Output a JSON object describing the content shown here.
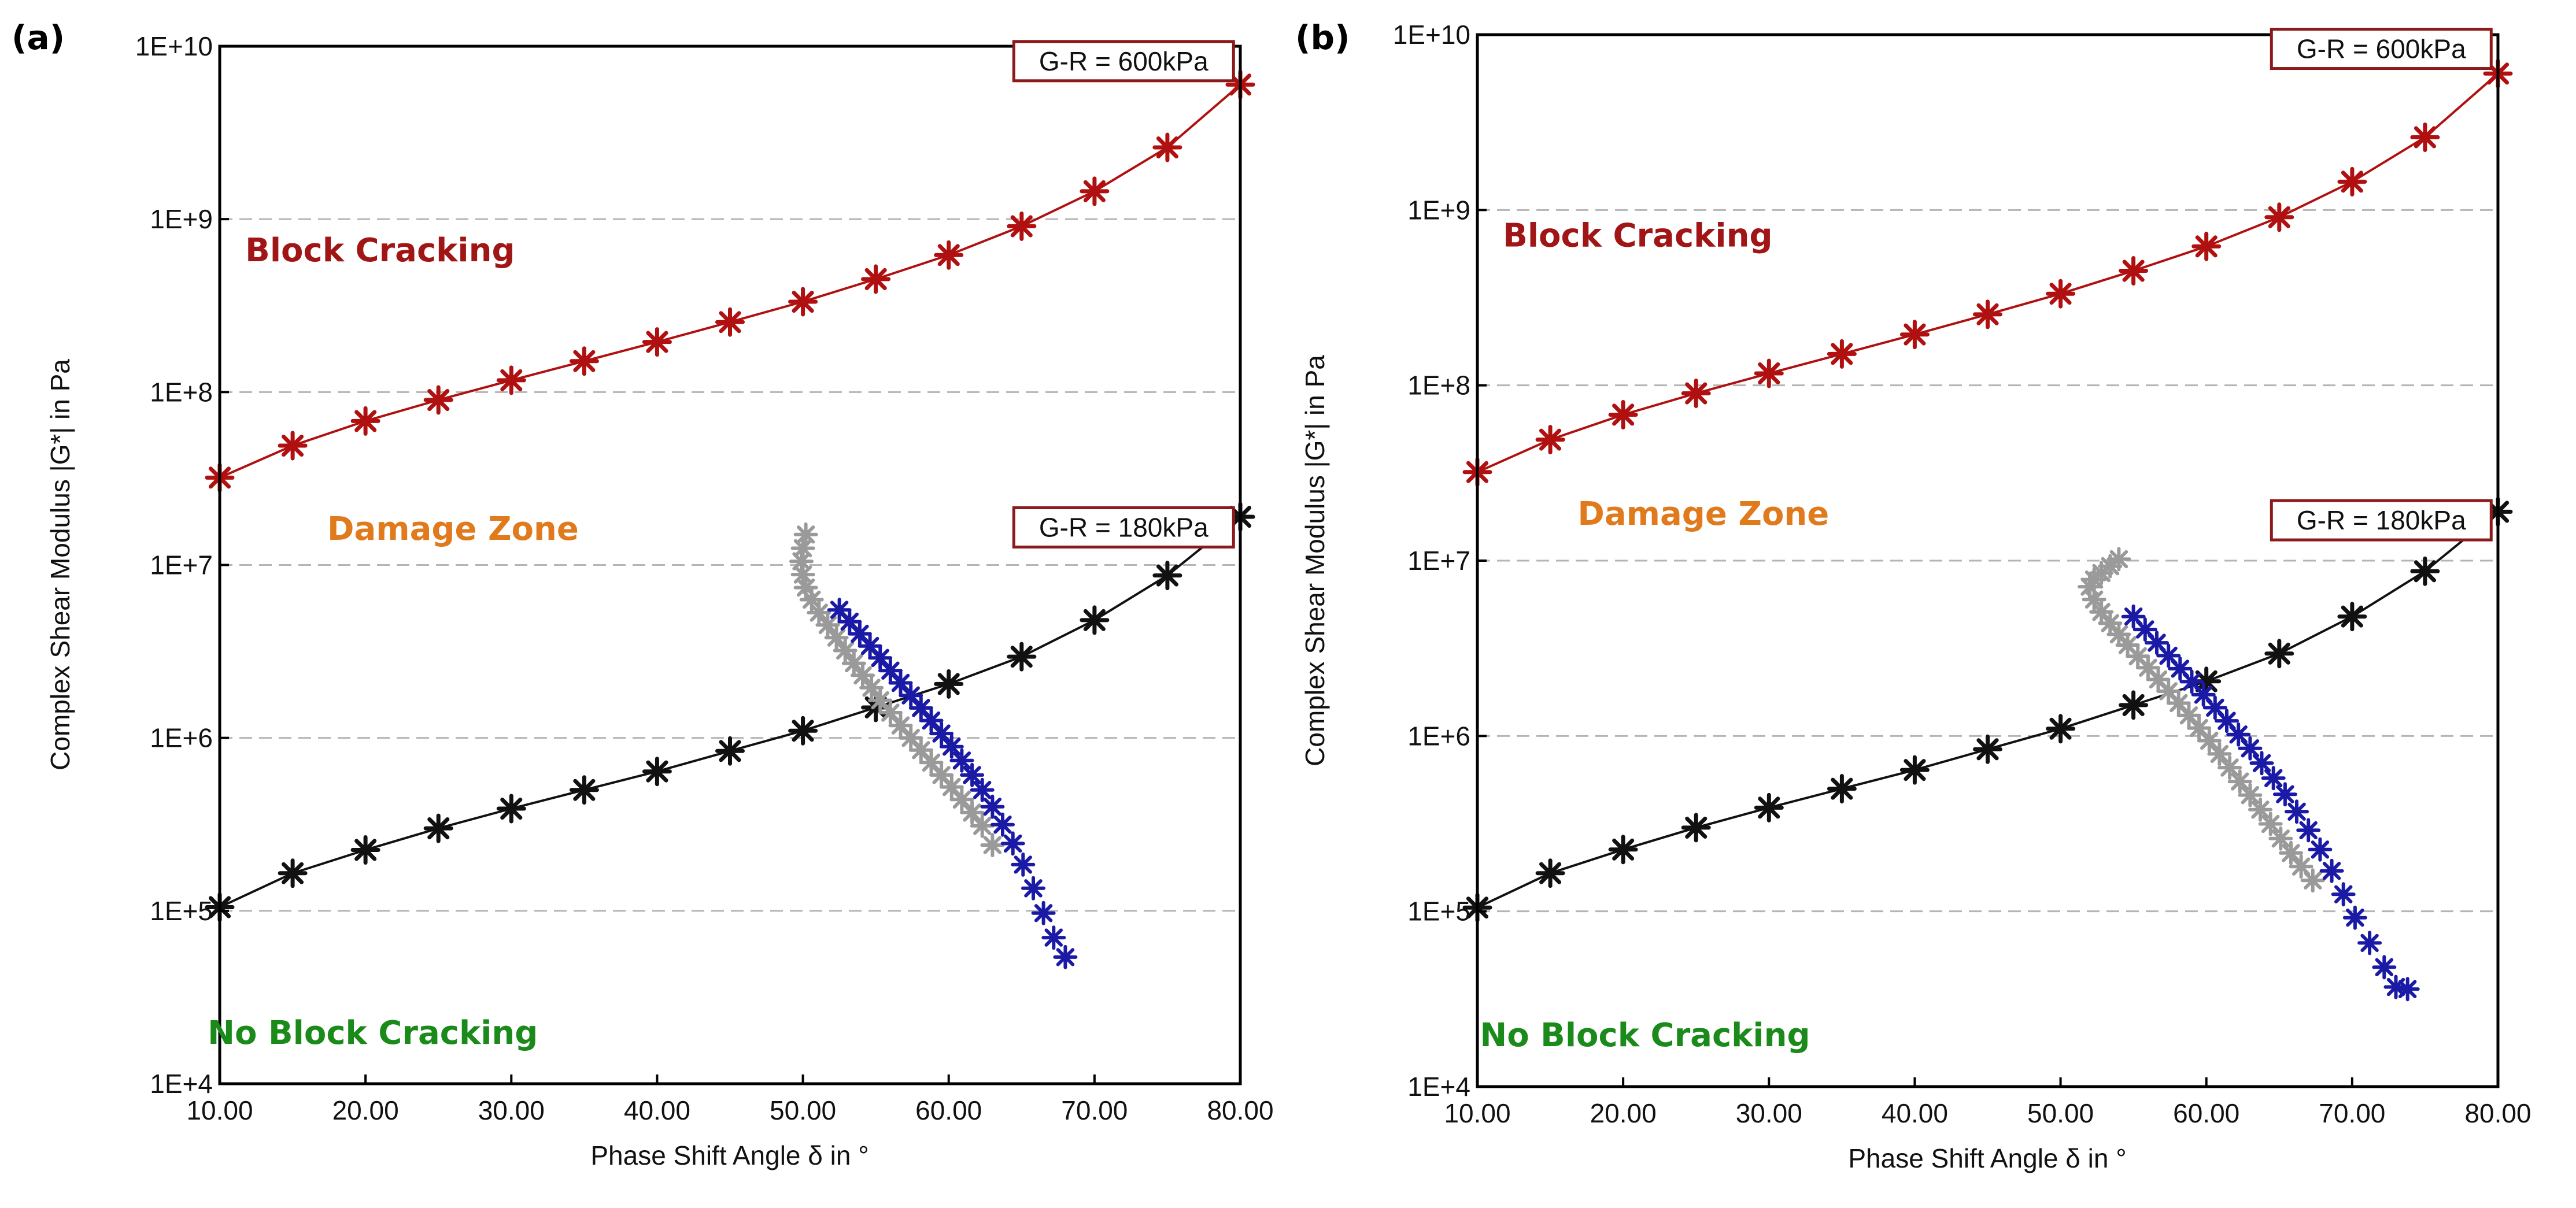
{
  "chart_data": [
    {
      "type": "scatter",
      "panel_label": "(a)",
      "xlabel": "Phase Shift Angle δ in °",
      "ylabel": "Complex Shear Modulus |G*| in Pa",
      "xlim": [
        10,
        80
      ],
      "ylim": [
        10000,
        10000000000
      ],
      "yscale": "log",
      "grid": "dashed horizontal",
      "x_ticks": [
        "10.00",
        "20.00",
        "30.00",
        "40.00",
        "50.00",
        "60.00",
        "70.00",
        "80.00"
      ],
      "y_ticks": [
        "1E+4",
        "1E+5",
        "1E+6",
        "1E+7",
        "1E+8",
        "1E+9",
        "1E+10"
      ],
      "zone_labels": [
        {
          "text": "Block Cracking",
          "x": 21,
          "y": 570000000,
          "color": "#a01515"
        },
        {
          "text": "Damage Zone",
          "x": 26,
          "y": 14000000,
          "color": "#e07a1c"
        },
        {
          "text": "No Block Cracking",
          "x": 20.5,
          "y": 17000,
          "color": "#1a8a1a"
        }
      ],
      "gr_labels": [
        {
          "text": "G-R = 600kPa",
          "x": 72,
          "y": 8200000000
        },
        {
          "text": "G-R = 180kPa",
          "x": 72,
          "y": 16500000
        }
      ],
      "series": [
        {
          "name": "G-R = 600kPa",
          "color": "#b01010",
          "line": true,
          "x": [
            10,
            15,
            20,
            25,
            30,
            35,
            40,
            45,
            50,
            55,
            60,
            65,
            70,
            75,
            80
          ],
          "y": [
            32000000,
            49000000,
            68000000,
            90000000,
            117000000,
            151000000,
            195000000,
            254000000,
            333000000,
            450000000,
            620000000,
            910000000,
            1450000000,
            2600000000,
            6000000000
          ]
        },
        {
          "name": "G-R = 180kPa",
          "color": "#111111",
          "line": true,
          "x": [
            10,
            15,
            20,
            25,
            30,
            35,
            40,
            45,
            50,
            55,
            60,
            65,
            70,
            75,
            80
          ],
          "y": [
            105000,
            165000,
            225000,
            300000,
            390000,
            500000,
            640000,
            840000,
            1100000,
            1500000,
            2050000,
            2950000,
            4800000,
            8700000,
            19000000
          ]
        },
        {
          "name": "Gray data",
          "color": "#9a9a9a",
          "line": false,
          "x": [
            50.2,
            50.0,
            49.9,
            50.0,
            50.2,
            50.6,
            51.1,
            51.7,
            52.3,
            52.9,
            53.5,
            54.1,
            54.7,
            55.3,
            56.0,
            56.7,
            57.4,
            58.1,
            58.8,
            59.5,
            60.2,
            60.9,
            61.6,
            62.3,
            63.0
          ],
          "y": [
            15000000,
            12500000,
            10500000,
            8800000,
            7400000,
            6300000,
            5300000,
            4500000,
            3800000,
            3200000,
            2700000,
            2300000,
            1950000,
            1650000,
            1400000,
            1180000,
            1000000,
            850000,
            720000,
            610000,
            520000,
            440000,
            370000,
            310000,
            240000
          ]
        },
        {
          "name": "Blue data",
          "color": "#1a1aa6",
          "line": false,
          "x": [
            52.5,
            53.2,
            53.9,
            54.6,
            55.3,
            56.0,
            56.7,
            57.4,
            58.1,
            58.8,
            59.5,
            60.2,
            60.9,
            61.6,
            62.3,
            63.0,
            63.7,
            64.4,
            65.1,
            65.8,
            66.5,
            67.2,
            68.0
          ],
          "y": [
            5500000,
            4700000,
            4000000,
            3400000,
            2900000,
            2450000,
            2080000,
            1760000,
            1490000,
            1260000,
            1060000,
            890000,
            740000,
            610000,
            500000,
            400000,
            315000,
            245000,
            185000,
            135000,
            97000,
            70000,
            54000
          ]
        }
      ]
    },
    {
      "type": "scatter",
      "panel_label": "(b)",
      "xlabel": "Phase Shift Angle δ in °",
      "ylabel": "Complex Shear Modulus |G*| in Pa",
      "xlim": [
        10,
        80
      ],
      "ylim": [
        10000,
        10000000000
      ],
      "yscale": "log",
      "grid": "dashed horizontal",
      "x_ticks": [
        "10.00",
        "20.00",
        "30.00",
        "40.00",
        "50.00",
        "60.00",
        "70.00",
        "80.00"
      ],
      "y_ticks": [
        "1E+4",
        "1E+5",
        "1E+6",
        "1E+7",
        "1E+8",
        "1E+9",
        "1E+10"
      ],
      "zone_labels": [
        {
          "text": "Block Cracking",
          "x": 21,
          "y": 620000000,
          "color": "#a01515"
        },
        {
          "text": "Damage Zone",
          "x": 25.5,
          "y": 16000000,
          "color": "#e07a1c"
        },
        {
          "text": "No Block Cracking",
          "x": 21.5,
          "y": 17000,
          "color": "#1a8a1a"
        }
      ],
      "gr_labels": [
        {
          "text": "G-R = 600kPa",
          "x": 72,
          "y": 8300000000
        },
        {
          "text": "G-R = 180kPa",
          "x": 72,
          "y": 17000000
        }
      ],
      "series": [
        {
          "name": "G-R = 600kPa",
          "color": "#b01010",
          "line": true,
          "x": [
            10,
            15,
            20,
            25,
            30,
            35,
            40,
            45,
            50,
            55,
            60,
            65,
            70,
            75,
            80
          ],
          "y": [
            32000000,
            49000000,
            68000000,
            90000000,
            117000000,
            151000000,
            195000000,
            254000000,
            333000000,
            450000000,
            620000000,
            910000000,
            1450000000,
            2600000000,
            6000000000
          ]
        },
        {
          "name": "G-R = 180kPa",
          "color": "#111111",
          "line": true,
          "x": [
            10,
            15,
            20,
            25,
            30,
            35,
            40,
            45,
            50,
            55,
            60,
            65,
            70,
            75,
            80
          ],
          "y": [
            105000,
            165000,
            225000,
            300000,
            390000,
            500000,
            640000,
            840000,
            1100000,
            1500000,
            2050000,
            2950000,
            4800000,
            8700000,
            19000000
          ]
        },
        {
          "name": "Gray data",
          "color": "#9a9a9a",
          "line": false,
          "x": [
            54.0,
            53.4,
            52.8,
            52.3,
            52.0,
            52.3,
            52.8,
            53.4,
            54.0,
            54.6,
            55.3,
            56.0,
            56.7,
            57.4,
            58.1,
            58.8,
            59.5,
            60.2,
            60.9,
            61.6,
            62.3,
            63.0,
            63.7,
            64.4,
            65.1,
            65.8,
            66.5,
            67.3
          ],
          "y": [
            10200000,
            9300000,
            8500000,
            7800000,
            7100000,
            6000000,
            5100000,
            4400000,
            3800000,
            3300000,
            2850000,
            2450000,
            2100000,
            1800000,
            1540000,
            1310000,
            1110000,
            940000,
            790000,
            660000,
            550000,
            460000,
            380000,
            315000,
            260000,
            215000,
            180000,
            150000
          ]
        },
        {
          "name": "Blue data",
          "color": "#1a1aa6",
          "line": false,
          "x": [
            55.0,
            55.8,
            56.6,
            57.4,
            58.2,
            59.0,
            59.8,
            60.6,
            61.4,
            62.2,
            63.0,
            63.8,
            64.6,
            65.4,
            66.2,
            67.0,
            67.8,
            68.6,
            69.4,
            70.2,
            71.2,
            72.2,
            73.0,
            73.8
          ],
          "y": [
            4800000,
            4050000,
            3400000,
            2870000,
            2420000,
            2040000,
            1720000,
            1450000,
            1220000,
            1020000,
            850000,
            700000,
            575000,
            465000,
            370000,
            290000,
            225000,
            170000,
            125000,
            92000,
            66000,
            48000,
            37000,
            36000
          ]
        }
      ]
    }
  ]
}
